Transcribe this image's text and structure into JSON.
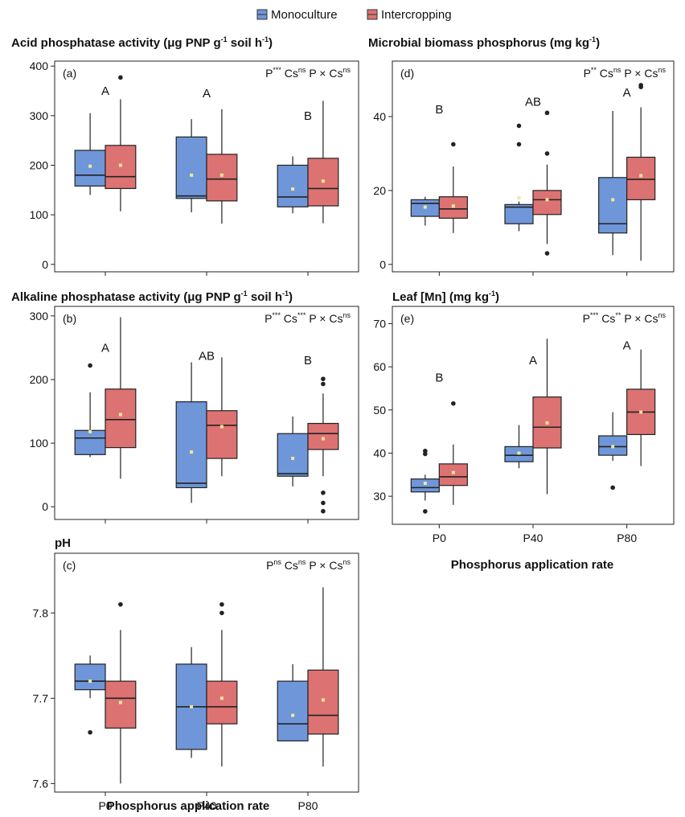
{
  "legend": {
    "items": [
      {
        "label": "Monoculture",
        "color": "#6f96d8"
      },
      {
        "label": "Intercropping",
        "color": "#dd7272"
      }
    ]
  },
  "x_axis_title": "Phosphorus application rate",
  "chart_data": [
    {
      "id": "a",
      "type": "box",
      "panel_label": "(a)",
      "title": {
        "pre": "Acid phosphatase activity (μg PNP g",
        "sup1": "-1",
        "mid": " soil h",
        "sup2": "-1",
        "post": ")"
      },
      "stats": [
        {
          "t": "P",
          "s": "***"
        },
        {
          "t": " Cs",
          "s": "ns"
        },
        {
          "t": " P × Cs",
          "s": "ns"
        }
      ],
      "categories": [
        "P0",
        "P40",
        "P80"
      ],
      "show_x_ticklabels": false,
      "ylim": [
        -15,
        410
      ],
      "yticks": [
        0,
        100,
        200,
        300,
        400
      ],
      "letters": [
        {
          "x": "P0",
          "y": 350,
          "text": "A"
        },
        {
          "x": "P40",
          "y": 345,
          "text": "A"
        },
        {
          "x": "P80",
          "y": 300,
          "text": "B"
        }
      ],
      "series": [
        {
          "name": "Monoculture",
          "boxes": [
            {
              "x": "P0",
              "min": 140,
              "q1": 158,
              "median": 180,
              "q3": 230,
              "max": 305,
              "mean": 198,
              "outliers": []
            },
            {
              "x": "P40",
              "min": 105,
              "q1": 133,
              "median": 138,
              "q3": 257,
              "max": 293,
              "mean": 180,
              "outliers": []
            },
            {
              "x": "P80",
              "min": 103,
              "q1": 116,
              "median": 136,
              "q3": 200,
              "max": 218,
              "mean": 152,
              "outliers": []
            }
          ]
        },
        {
          "name": "Intercropping",
          "boxes": [
            {
              "x": "P0",
              "min": 107,
              "q1": 153,
              "median": 177,
              "q3": 240,
              "max": 333,
              "mean": 200,
              "outliers": [
                377
              ]
            },
            {
              "x": "P40",
              "min": 82,
              "q1": 128,
              "median": 172,
              "q3": 222,
              "max": 313,
              "mean": 180,
              "outliers": []
            },
            {
              "x": "P80",
              "min": 83,
              "q1": 118,
              "median": 153,
              "q3": 214,
              "max": 330,
              "mean": 168,
              "outliers": []
            }
          ]
        }
      ]
    },
    {
      "id": "b",
      "type": "box",
      "panel_label": "(b)",
      "title": {
        "pre": "Alkaline phosphatase activity (μg PNP g",
        "sup1": "-1",
        "mid": " soil h",
        "sup2": "-1",
        "post": ")"
      },
      "stats": [
        {
          "t": "P",
          "s": "***"
        },
        {
          "t": " Cs",
          "s": "***"
        },
        {
          "t": " P × Cs",
          "s": "ns"
        }
      ],
      "categories": [
        "P0",
        "P40",
        "P80"
      ],
      "show_x_ticklabels": false,
      "ylim": [
        -20,
        315
      ],
      "yticks": [
        0,
        100,
        200,
        300
      ],
      "letters": [
        {
          "x": "P0",
          "y": 250,
          "text": "A"
        },
        {
          "x": "P40",
          "y": 237,
          "text": "AB"
        },
        {
          "x": "P80",
          "y": 230,
          "text": "B"
        }
      ],
      "series": [
        {
          "name": "Monoculture",
          "boxes": [
            {
              "x": "P0",
              "min": 78,
              "q1": 82,
              "median": 108,
              "q3": 120,
              "max": 180,
              "mean": 118,
              "outliers": [
                222
              ]
            },
            {
              "x": "P40",
              "min": 6,
              "q1": 30,
              "median": 37,
              "q3": 165,
              "max": 227,
              "mean": 86,
              "outliers": []
            },
            {
              "x": "P80",
              "min": 32,
              "q1": 48,
              "median": 52,
              "q3": 115,
              "max": 142,
              "mean": 76,
              "outliers": []
            }
          ]
        },
        {
          "name": "Intercropping",
          "boxes": [
            {
              "x": "P0",
              "min": 44,
              "q1": 93,
              "median": 137,
              "q3": 185,
              "max": 298,
              "mean": 145,
              "outliers": []
            },
            {
              "x": "P40",
              "min": 48,
              "q1": 76,
              "median": 128,
              "q3": 151,
              "max": 235,
              "mean": 126,
              "outliers": []
            },
            {
              "x": "P80",
              "min": 48,
              "q1": 90,
              "median": 115,
              "q3": 131,
              "max": 178,
              "mean": 107,
              "outliers": [
                201,
                193,
                22,
                6,
                -7
              ]
            }
          ]
        }
      ]
    },
    {
      "id": "c",
      "type": "box",
      "panel_label": "(c)",
      "title": {
        "pre": "pH"
      },
      "stats": [
        {
          "t": "P",
          "s": "ns"
        },
        {
          "t": " Cs",
          "s": "ns"
        },
        {
          "t": " P × Cs",
          "s": "ns"
        }
      ],
      "categories": [
        "P0",
        "P40",
        "P80"
      ],
      "show_x_ticklabels": true,
      "ylim": [
        7.59,
        7.87
      ],
      "yticks": [
        7.6,
        7.7,
        7.8
      ],
      "letters": [],
      "series": [
        {
          "name": "Monoculture",
          "boxes": [
            {
              "x": "P0",
              "min": 7.7,
              "q1": 7.71,
              "median": 7.72,
              "q3": 7.74,
              "max": 7.75,
              "mean": 7.72,
              "outliers": [
                7.66
              ]
            },
            {
              "x": "P40",
              "min": 7.63,
              "q1": 7.64,
              "median": 7.69,
              "q3": 7.74,
              "max": 7.76,
              "mean": 7.69,
              "outliers": []
            },
            {
              "x": "P80",
              "min": 7.65,
              "q1": 7.65,
              "median": 7.67,
              "q3": 7.72,
              "max": 7.74,
              "mean": 7.68,
              "outliers": []
            }
          ]
        },
        {
          "name": "Intercropping",
          "boxes": [
            {
              "x": "P0",
              "min": 7.6,
              "q1": 7.665,
              "median": 7.7,
              "q3": 7.72,
              "max": 7.78,
              "mean": 7.695,
              "outliers": [
                7.81
              ]
            },
            {
              "x": "P40",
              "min": 7.62,
              "q1": 7.67,
              "median": 7.69,
              "q3": 7.72,
              "max": 7.78,
              "mean": 7.7,
              "outliers": [
                7.81,
                7.8
              ]
            },
            {
              "x": "P80",
              "min": 7.62,
              "q1": 7.658,
              "median": 7.68,
              "q3": 7.733,
              "max": 7.83,
              "mean": 7.698,
              "outliers": []
            }
          ]
        }
      ]
    },
    {
      "id": "d",
      "type": "box",
      "panel_label": "(d)",
      "title": {
        "pre": "Microbial biomass phosphorus (mg kg",
        "sup1": "-1",
        "post": ")"
      },
      "stats": [
        {
          "t": "P",
          "s": "**"
        },
        {
          "t": " Cs",
          "s": "ns"
        },
        {
          "t": " P × Cs",
          "s": "ns"
        }
      ],
      "categories": [
        "P0",
        "P40",
        "P80"
      ],
      "show_x_ticklabels": false,
      "ylim": [
        -2,
        55
      ],
      "yticks": [
        0,
        20,
        40
      ],
      "letters": [
        {
          "x": "P0",
          "y": 42,
          "text": "B"
        },
        {
          "x": "P40",
          "y": 44,
          "text": "AB"
        },
        {
          "x": "P80",
          "y": 46.5,
          "text": "A"
        }
      ],
      "series": [
        {
          "name": "Monoculture",
          "boxes": [
            {
              "x": "P0",
              "min": 10.5,
              "q1": 13,
              "median": 16.5,
              "q3": 17.5,
              "max": 18.3,
              "mean": 15.5,
              "outliers": []
            },
            {
              "x": "P40",
              "min": 9,
              "q1": 11,
              "median": 15.5,
              "q3": 16.2,
              "max": 17,
              "mean": 18,
              "outliers": [
                37.5,
                32.5
              ]
            },
            {
              "x": "P80",
              "min": 2.5,
              "q1": 8.5,
              "median": 11,
              "q3": 23.5,
              "max": 41.5,
              "mean": 17.5,
              "outliers": []
            }
          ]
        },
        {
          "name": "Intercropping",
          "boxes": [
            {
              "x": "P0",
              "min": 8.5,
              "q1": 12.5,
              "median": 15,
              "q3": 18.3,
              "max": 26.5,
              "mean": 15.8,
              "outliers": [
                32.5
              ]
            },
            {
              "x": "P40",
              "min": 5.5,
              "q1": 13.5,
              "median": 17.5,
              "q3": 20,
              "max": 27,
              "mean": 17.5,
              "outliers": [
                41,
                30,
                3
              ]
            },
            {
              "x": "P80",
              "min": 1,
              "q1": 17.5,
              "median": 23,
              "q3": 29,
              "max": 42.5,
              "mean": 24,
              "outliers": [
                48.5,
                48
              ]
            }
          ]
        }
      ]
    },
    {
      "id": "e",
      "type": "box",
      "panel_label": "(e)",
      "title": {
        "pre": "Leaf [Mn] (mg kg",
        "sup1": "-1",
        "post": ")"
      },
      "stats": [
        {
          "t": "P",
          "s": "***"
        },
        {
          "t": " Cs",
          "s": "**"
        },
        {
          "t": " P × Cs",
          "s": "ns"
        }
      ],
      "categories": [
        "P0",
        "P40",
        "P80"
      ],
      "show_x_ticklabels": true,
      "ylim": [
        23.5,
        74
      ],
      "yticks": [
        30,
        40,
        50,
        60,
        70
      ],
      "letters": [
        {
          "x": "P0",
          "y": 57.5,
          "text": "B"
        },
        {
          "x": "P40",
          "y": 61.5,
          "text": "A"
        },
        {
          "x": "P80",
          "y": 65,
          "text": "A"
        }
      ],
      "series": [
        {
          "name": "Monoculture",
          "boxes": [
            {
              "x": "P0",
              "min": 29,
              "q1": 31,
              "median": 32,
              "q3": 34,
              "max": 35,
              "mean": 33,
              "outliers": [
                40.5,
                39.8,
                26.5
              ]
            },
            {
              "x": "P40",
              "min": 36.5,
              "q1": 38,
              "median": 39.5,
              "q3": 41.5,
              "max": 46.5,
              "mean": 40,
              "outliers": []
            },
            {
              "x": "P80",
              "min": 38.2,
              "q1": 39.5,
              "median": 41.5,
              "q3": 44,
              "max": 49.5,
              "mean": 41.5,
              "outliers": [
                32
              ]
            }
          ]
        },
        {
          "name": "Intercropping",
          "boxes": [
            {
              "x": "P0",
              "min": 28,
              "q1": 32.5,
              "median": 34.5,
              "q3": 37.5,
              "max": 42,
              "mean": 35.5,
              "outliers": [
                51.5
              ]
            },
            {
              "x": "P40",
              "min": 30.5,
              "q1": 41.2,
              "median": 46,
              "q3": 53,
              "max": 66.5,
              "mean": 47,
              "outliers": []
            },
            {
              "x": "P80",
              "min": 37,
              "q1": 44.3,
              "median": 49.5,
              "q3": 54.8,
              "max": 64,
              "mean": 49.5,
              "outliers": []
            }
          ]
        }
      ]
    }
  ]
}
